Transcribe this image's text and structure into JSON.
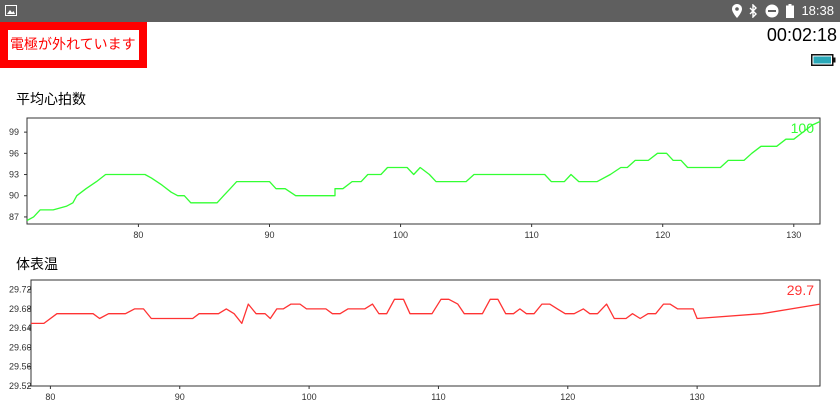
{
  "status_bar": {
    "time": "18:38",
    "icons": [
      "image-icon",
      "location-icon",
      "bluetooth-icon",
      "do-not-disturb-icon",
      "battery-icon"
    ]
  },
  "alert": {
    "text": "電極が外れています",
    "color": "#ff0000"
  },
  "timer": "00:02:18",
  "device_battery": {
    "color": "#2aa8b8"
  },
  "heart_rate": {
    "title": "平均心拍数",
    "current_value": "100",
    "color": "#33ff33"
  },
  "body_temp": {
    "title": "体表温",
    "current_value": "29.7",
    "color": "#ff3333"
  },
  "chart_data": [
    {
      "type": "line",
      "title": "平均心拍数",
      "xlim": [
        71.5,
        132
      ],
      "ylim": [
        86,
        101
      ],
      "x_ticks": [
        80,
        90,
        100,
        110,
        120,
        130
      ],
      "y_ticks": [
        87,
        90,
        93,
        96,
        99
      ],
      "grid": false,
      "series": [
        {
          "color": "#33ff33",
          "points": [
            [
              71.5,
              86.5
            ],
            [
              72,
              87
            ],
            [
              72.5,
              88
            ],
            [
              73.5,
              88
            ],
            [
              74.5,
              88.5
            ],
            [
              75,
              89
            ],
            [
              75.3,
              90
            ],
            [
              76,
              91
            ],
            [
              76.8,
              92
            ],
            [
              77.5,
              93
            ],
            [
              80.5,
              93
            ],
            [
              81,
              92.5
            ],
            [
              81.8,
              91.5
            ],
            [
              82.5,
              90.5
            ],
            [
              83,
              90
            ],
            [
              83.5,
              90
            ],
            [
              84,
              89
            ],
            [
              86,
              89
            ],
            [
              86.5,
              90
            ],
            [
              87,
              91
            ],
            [
              87.5,
              92
            ],
            [
              90,
              92
            ],
            [
              90.5,
              91
            ],
            [
              91.2,
              91
            ],
            [
              92,
              90
            ],
            [
              95,
              90
            ],
            [
              95,
              91
            ],
            [
              95.6,
              91
            ],
            [
              96.3,
              92
            ],
            [
              97,
              92
            ],
            [
              97.5,
              93
            ],
            [
              98.5,
              93
            ],
            [
              99,
              94
            ],
            [
              100.5,
              94
            ],
            [
              101,
              93
            ],
            [
              101.5,
              94
            ],
            [
              102.2,
              93
            ],
            [
              102.7,
              92
            ],
            [
              105,
              92
            ],
            [
              105.6,
              93
            ],
            [
              111,
              93
            ],
            [
              111.5,
              92
            ],
            [
              112.5,
              92
            ],
            [
              113,
              93
            ],
            [
              113.6,
              92
            ],
            [
              115,
              92
            ],
            [
              116,
              93
            ],
            [
              116.8,
              94
            ],
            [
              117.3,
              94
            ],
            [
              117.9,
              95
            ],
            [
              118.9,
              95
            ],
            [
              119.6,
              96
            ],
            [
              120.3,
              96
            ],
            [
              120.8,
              95
            ],
            [
              121.4,
              95
            ],
            [
              121.9,
              94
            ],
            [
              124.4,
              94
            ],
            [
              125,
              95
            ],
            [
              126.2,
              95
            ],
            [
              126.8,
              96
            ],
            [
              127.5,
              97
            ],
            [
              128.7,
              97
            ],
            [
              129.4,
              98
            ],
            [
              130,
              98
            ],
            [
              130.7,
              99
            ],
            [
              131.4,
              100
            ],
            [
              132,
              100.5
            ]
          ]
        }
      ]
    },
    {
      "type": "line",
      "title": "体表温",
      "xlim": [
        78.5,
        139.5
      ],
      "ylim": [
        29.52,
        29.74
      ],
      "x_ticks": [
        80,
        90,
        100,
        110,
        120,
        130
      ],
      "y_ticks": [
        29.52,
        29.56,
        29.6,
        29.64,
        29.68,
        29.72
      ],
      "grid": false,
      "series": [
        {
          "color": "#ff3333",
          "points": [
            [
              78.5,
              29.65
            ],
            [
              79.5,
              29.65
            ],
            [
              80.5,
              29.67
            ],
            [
              83.3,
              29.67
            ],
            [
              83.8,
              29.66
            ],
            [
              84.5,
              29.67
            ],
            [
              85.8,
              29.67
            ],
            [
              86.5,
              29.68
            ],
            [
              87.2,
              29.68
            ],
            [
              87.8,
              29.66
            ],
            [
              91,
              29.66
            ],
            [
              91.5,
              29.67
            ],
            [
              93,
              29.67
            ],
            [
              93.6,
              29.68
            ],
            [
              94.2,
              29.67
            ],
            [
              94.8,
              29.65
            ],
            [
              95.3,
              29.69
            ],
            [
              95.9,
              29.67
            ],
            [
              96.6,
              29.67
            ],
            [
              97,
              29.66
            ],
            [
              97.5,
              29.68
            ],
            [
              98,
              29.68
            ],
            [
              98.6,
              29.69
            ],
            [
              99.3,
              29.69
            ],
            [
              99.8,
              29.68
            ],
            [
              101.3,
              29.68
            ],
            [
              101.8,
              29.67
            ],
            [
              102.4,
              29.67
            ],
            [
              103,
              29.68
            ],
            [
              104.3,
              29.68
            ],
            [
              104.9,
              29.69
            ],
            [
              105.4,
              29.67
            ],
            [
              106,
              29.67
            ],
            [
              106.6,
              29.7
            ],
            [
              107.3,
              29.7
            ],
            [
              107.8,
              29.67
            ],
            [
              109.5,
              29.67
            ],
            [
              110.2,
              29.7
            ],
            [
              110.8,
              29.7
            ],
            [
              111.5,
              29.69
            ],
            [
              112,
              29.67
            ],
            [
              113.4,
              29.67
            ],
            [
              114,
              29.7
            ],
            [
              114.6,
              29.7
            ],
            [
              115.2,
              29.67
            ],
            [
              115.8,
              29.67
            ],
            [
              116.3,
              29.68
            ],
            [
              116.8,
              29.67
            ],
            [
              117.4,
              29.67
            ],
            [
              118,
              29.69
            ],
            [
              118.6,
              29.69
            ],
            [
              119.2,
              29.68
            ],
            [
              119.8,
              29.67
            ],
            [
              120.5,
              29.67
            ],
            [
              121.2,
              29.68
            ],
            [
              121.7,
              29.67
            ],
            [
              122.3,
              29.67
            ],
            [
              123,
              29.69
            ],
            [
              123.6,
              29.66
            ],
            [
              124.5,
              29.66
            ],
            [
              125,
              29.67
            ],
            [
              125.6,
              29.66
            ],
            [
              126.2,
              29.67
            ],
            [
              126.8,
              29.67
            ],
            [
              127.4,
              29.69
            ],
            [
              127.9,
              29.69
            ],
            [
              128.5,
              29.68
            ],
            [
              129.7,
              29.68
            ],
            [
              130,
              29.66
            ],
            [
              135,
              29.67
            ],
            [
              139.5,
              29.69
            ]
          ]
        }
      ]
    }
  ]
}
